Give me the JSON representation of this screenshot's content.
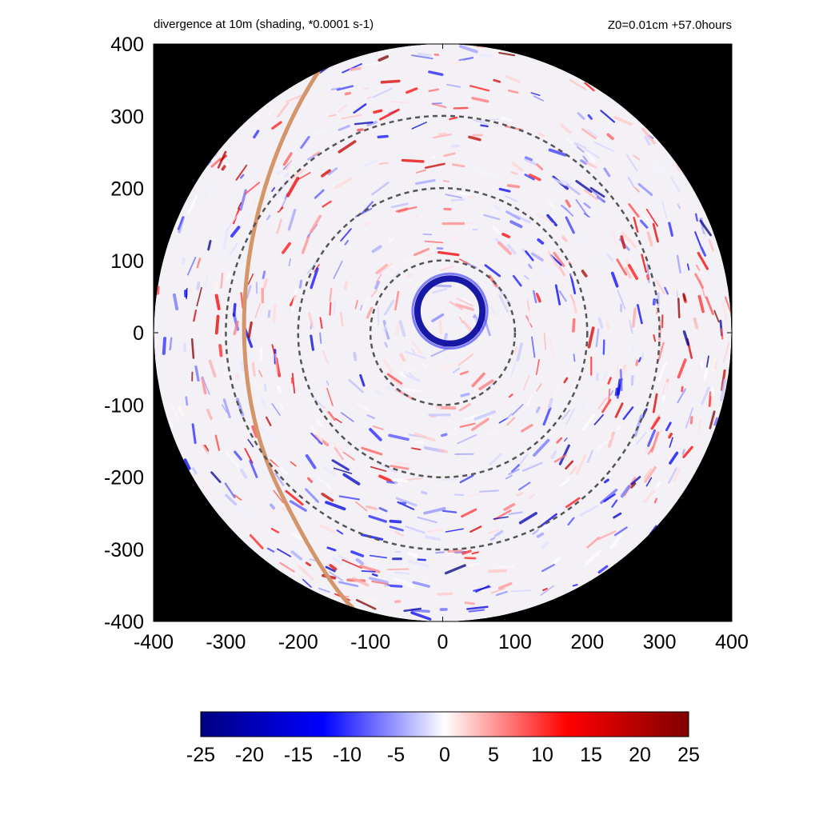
{
  "chart_data": {
    "type": "heatmap",
    "title": "divergence at 10m (shading, *0.0001 s-1)",
    "subtitle": "Z0=0.01cm  +57.0hours",
    "xlabel": "",
    "ylabel": "",
    "xlim": [
      -400,
      400
    ],
    "ylim": [
      -400,
      400
    ],
    "x_ticks": [
      -400,
      -300,
      -200,
      -100,
      0,
      100,
      200,
      300,
      400
    ],
    "y_ticks": [
      -400,
      -300,
      -200,
      -100,
      0,
      100,
      200,
      300,
      400
    ],
    "domain_radius": 400,
    "outside_domain_color": "#000000",
    "reference_circles_radius": [
      100,
      200,
      300
    ],
    "reference_circle_style": "dashed grey",
    "eyewall_ring": {
      "center": [
        10,
        30
      ],
      "radius": 45,
      "value": -22
    },
    "coastline_color": "#d4956a",
    "colorbar": {
      "range": [
        -25,
        25
      ],
      "ticks": [
        -25,
        -20,
        -15,
        -10,
        -5,
        0,
        5,
        10,
        15,
        20,
        25
      ],
      "colors": [
        "#000080",
        "#0000ff",
        "#ffffff",
        "#ff0000",
        "#800000"
      ],
      "placement": "bottom"
    }
  }
}
